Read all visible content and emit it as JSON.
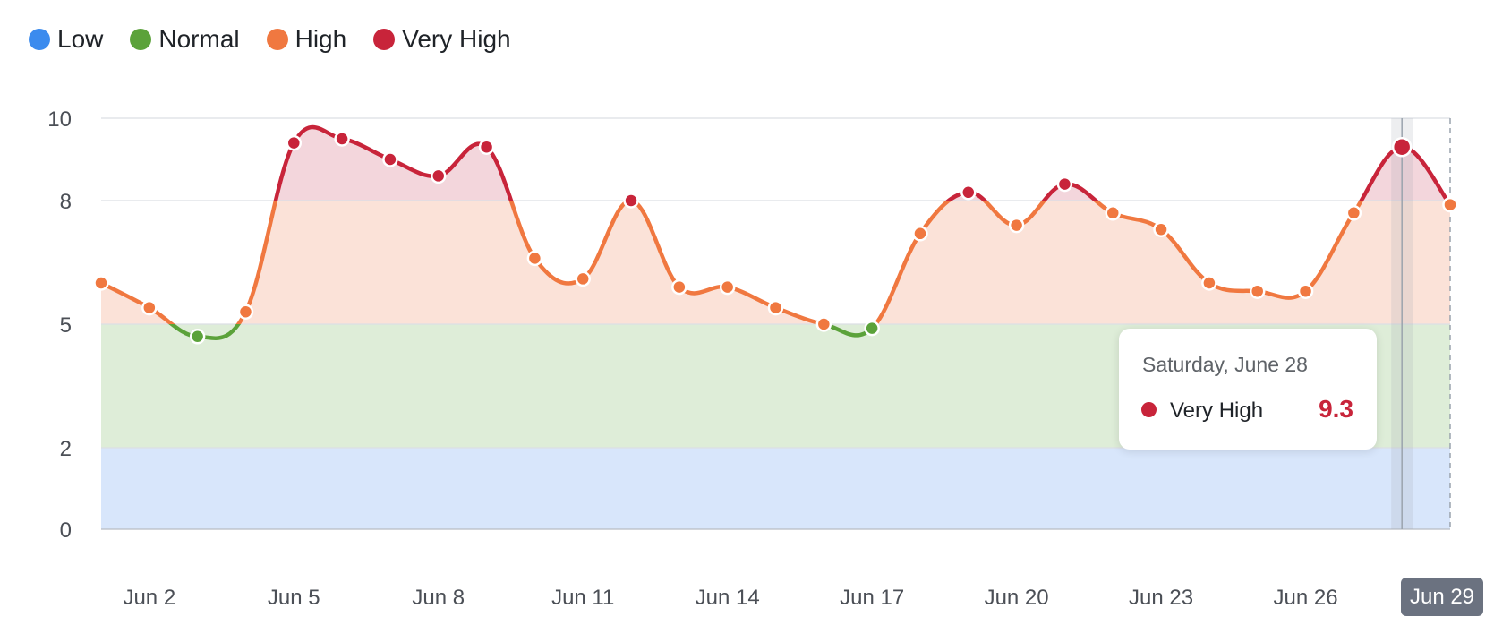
{
  "legend": [
    {
      "label": "Low",
      "color": "#3b8bee"
    },
    {
      "label": "Normal",
      "color": "#5ba23a"
    },
    {
      "label": "High",
      "color": "#f07840"
    },
    {
      "label": "Very High",
      "color": "#c8243a"
    }
  ],
  "tooltip": {
    "date": "Saturday, June 28",
    "level": "Very High",
    "value": "9.3",
    "dot_color": "#c8243a",
    "value_color": "#c8243a"
  },
  "chart_data": {
    "type": "line",
    "x": [
      "Jun 1",
      "Jun 2",
      "Jun 3",
      "Jun 4",
      "Jun 5",
      "Jun 6",
      "Jun 7",
      "Jun 8",
      "Jun 9",
      "Jun 10",
      "Jun 11",
      "Jun 12",
      "Jun 13",
      "Jun 14",
      "Jun 15",
      "Jun 16",
      "Jun 17",
      "Jun 18",
      "Jun 19",
      "Jun 20",
      "Jun 21",
      "Jun 22",
      "Jun 23",
      "Jun 24",
      "Jun 25",
      "Jun 26",
      "Jun 27",
      "Jun 28",
      "Jun 29"
    ],
    "y": [
      6.0,
      5.4,
      4.7,
      5.3,
      9.4,
      9.5,
      9.0,
      8.6,
      9.3,
      6.6,
      6.1,
      8.0,
      5.9,
      5.9,
      5.4,
      5.0,
      4.9,
      7.2,
      8.2,
      7.4,
      8.4,
      7.7,
      7.3,
      6.0,
      5.8,
      5.8,
      7.7,
      9.3,
      7.9
    ],
    "x_tick_labels": [
      "Jun 2",
      "Jun 5",
      "Jun 8",
      "Jun 11",
      "Jun 14",
      "Jun 17",
      "Jun 20",
      "Jun 23",
      "Jun 26",
      "Jun 29"
    ],
    "y_ticks": [
      0,
      2,
      5,
      8,
      10
    ],
    "ylim": [
      0,
      10
    ],
    "bands": [
      {
        "label": "Low",
        "from": 0,
        "to": 2,
        "color": "#3b8bee"
      },
      {
        "label": "Normal",
        "from": 2,
        "to": 5,
        "color": "#5ba23a"
      },
      {
        "label": "High",
        "from": 5,
        "to": 8,
        "color": "#f07840"
      },
      {
        "label": "Very High",
        "from": 8,
        "to": 10,
        "color": "#c8243a"
      }
    ],
    "highlighted_x": "Jun 28",
    "highlighted_x_label": "Jun 29",
    "legend_position": "top-left",
    "grid": true
  }
}
